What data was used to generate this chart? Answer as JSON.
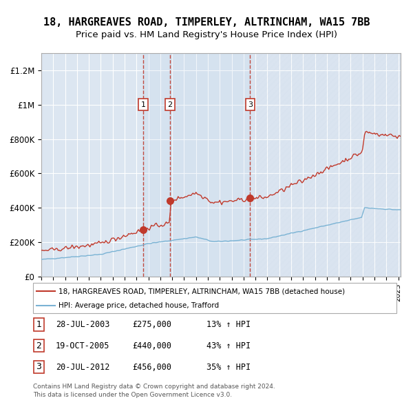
{
  "title1": "18, HARGREAVES ROAD, TIMPERLEY, ALTRINCHAM, WA15 7BB",
  "title2": "Price paid vs. HM Land Registry's House Price Index (HPI)",
  "red_label": "18, HARGREAVES ROAD, TIMPERLEY, ALTRINCHAM, WA15 7BB (detached house)",
  "blue_label": "HPI: Average price, detached house, Trafford",
  "footnote1": "Contains HM Land Registry data © Crown copyright and database right 2024.",
  "footnote2": "This data is licensed under the Open Government Licence v3.0.",
  "transactions": [
    {
      "num": 1,
      "date": "28-JUL-2003",
      "price": 275000,
      "pct": "13%",
      "year": 2003.57
    },
    {
      "num": 2,
      "date": "19-OCT-2005",
      "price": 440000,
      "pct": "43%",
      "year": 2005.8
    },
    {
      "num": 3,
      "date": "20-JUL-2012",
      "price": 456000,
      "pct": "35%",
      "year": 2012.55
    }
  ],
  "ylim": [
    0,
    1300000
  ],
  "xlim_start": 1995.0,
  "xlim_end": 2025.2,
  "bg_color": "#dce6f1",
  "plot_bg": "#dce6f1",
  "hatch_color": "#b8c8d8",
  "red_color": "#c0392b",
  "blue_color": "#7ab3d4",
  "grid_color": "#ffffff",
  "title_fontsize": 11,
  "subtitle_fontsize": 9.5
}
